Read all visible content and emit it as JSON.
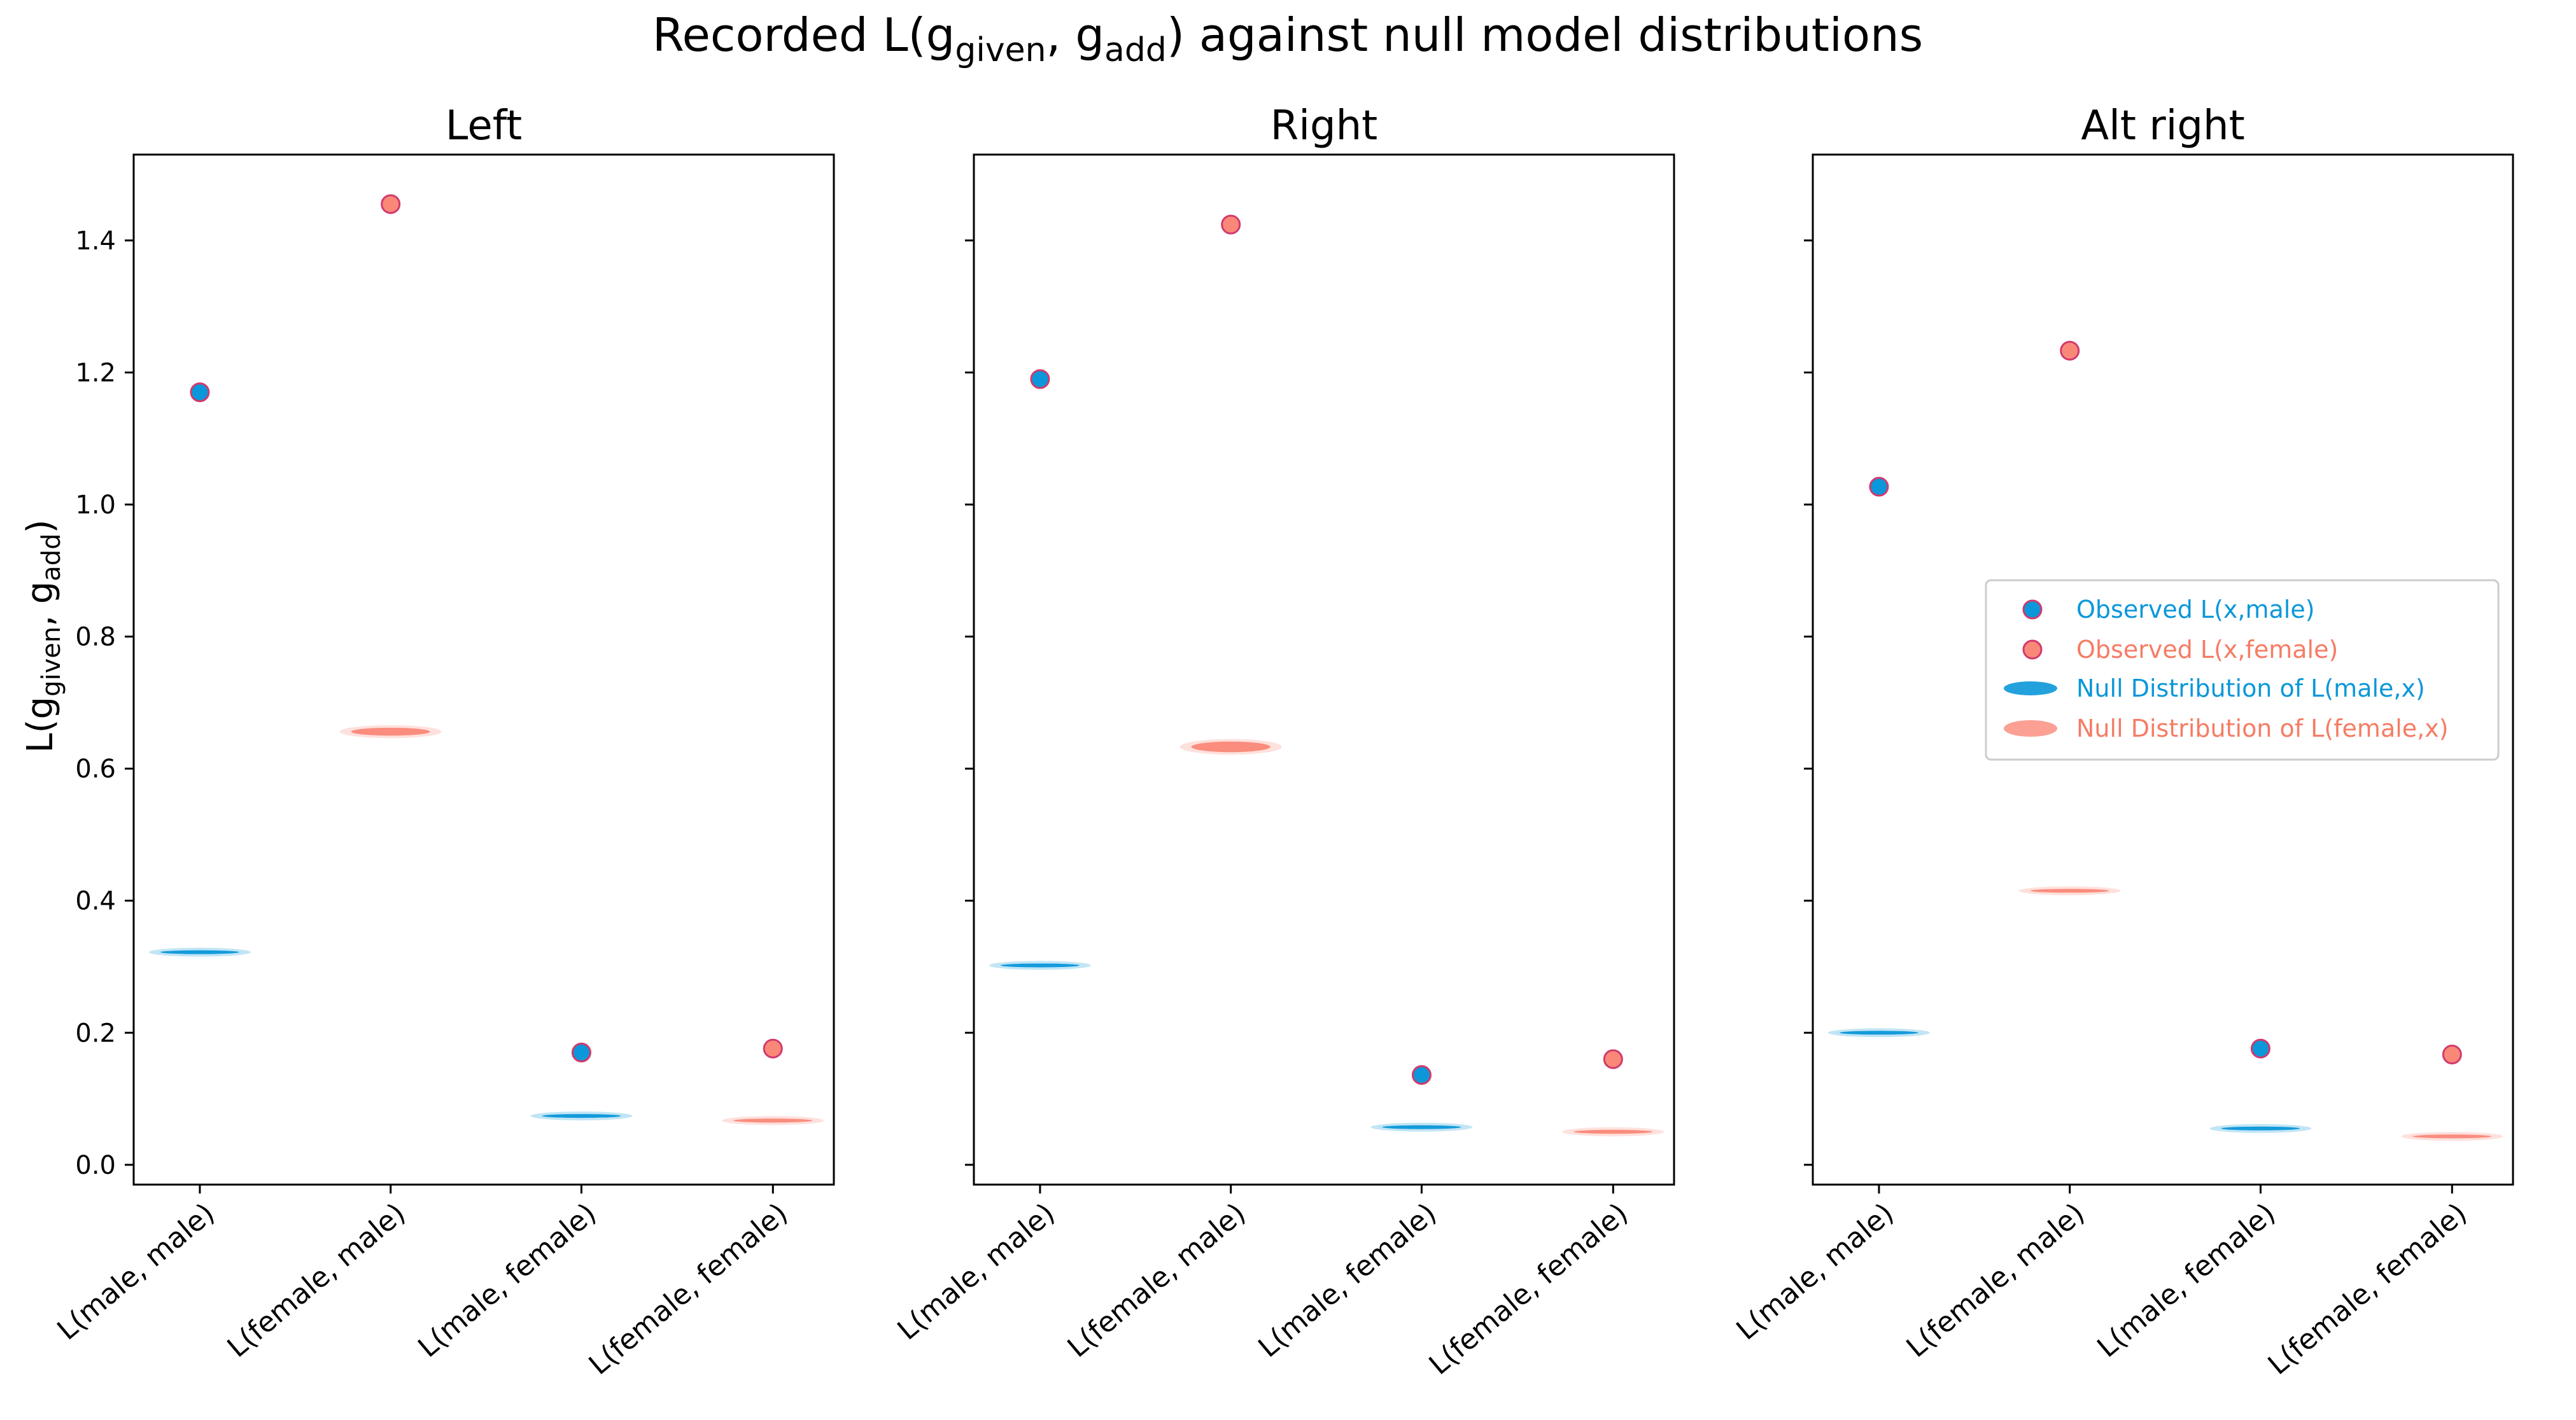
{
  "figure": {
    "title_main": "Recorded L(g",
    "title_sub1": "given",
    "title_mid": ", g",
    "title_sub2": "add",
    "title_end": ") against null model distributions",
    "ylabel_main": "L(g",
    "ylabel_sub1": "given",
    "ylabel_mid": ", g",
    "ylabel_sub2": "add",
    "ylabel_end": ")"
  },
  "colors": {
    "male": "#0b97d9",
    "female": "#fa8878",
    "edge": "#d13a6d",
    "male_text": "#0b97d9",
    "female_text": "#f67c64"
  },
  "legend": {
    "observed_male": "Observed L(x,male)",
    "observed_female": "Observed L(x,female)",
    "null_male": "Null Distribution of L(male,x)",
    "null_female": "Null Distribution of L(female,x)"
  },
  "chart_data": [
    {
      "type": "scatter",
      "title": "Left",
      "categories": [
        "L(male, male)",
        "L(female, male)",
        "L(male, female)",
        "L(female, female)"
      ],
      "category_group": [
        "male",
        "female",
        "male",
        "female"
      ],
      "observed": [
        1.17,
        1.455,
        0.17,
        0.176
      ],
      "null_center": [
        0.322,
        0.656,
        0.074,
        0.067
      ],
      "null_spread": [
        0.002,
        0.006,
        0.002,
        0.003
      ],
      "ylim": [
        -0.03,
        1.53
      ],
      "yticks": [
        0.0,
        0.2,
        0.4,
        0.6,
        0.8,
        1.0,
        1.2,
        1.4
      ],
      "ytick_labels": [
        "0.0",
        "0.2",
        "0.4",
        "0.6",
        "0.8",
        "1.0",
        "1.2",
        "1.4"
      ],
      "show_ytick_labels": true
    },
    {
      "type": "scatter",
      "title": "Right",
      "categories": [
        "L(male, male)",
        "L(female, male)",
        "L(male, female)",
        "L(female, female)"
      ],
      "category_group": [
        "male",
        "female",
        "male",
        "female"
      ],
      "observed": [
        1.19,
        1.424,
        0.136,
        0.16
      ],
      "null_center": [
        0.302,
        0.633,
        0.057,
        0.05
      ],
      "null_spread": [
        0.002,
        0.008,
        0.002,
        0.003
      ],
      "ylim": [
        -0.03,
        1.53
      ],
      "yticks": [
        0.0,
        0.2,
        0.4,
        0.6,
        0.8,
        1.0,
        1.2,
        1.4
      ],
      "ytick_labels": [
        "0.0",
        "0.2",
        "0.4",
        "0.6",
        "0.8",
        "1.0",
        "1.2",
        "1.4"
      ],
      "show_ytick_labels": false
    },
    {
      "type": "scatter",
      "title": "Alt right",
      "categories": [
        "L(male, male)",
        "L(female, male)",
        "L(male, female)",
        "L(female, female)"
      ],
      "category_group": [
        "male",
        "female",
        "male",
        "female"
      ],
      "observed": [
        1.027,
        1.233,
        0.176,
        0.167
      ],
      "null_center": [
        0.2,
        0.415,
        0.055,
        0.043
      ],
      "null_spread": [
        0.002,
        0.002,
        0.002,
        0.002
      ],
      "ylim": [
        -0.03,
        1.53
      ],
      "yticks": [
        0.0,
        0.2,
        0.4,
        0.6,
        0.8,
        1.0,
        1.2,
        1.4
      ],
      "ytick_labels": [
        "0.0",
        "0.2",
        "0.4",
        "0.6",
        "0.8",
        "1.0",
        "1.2",
        "1.4"
      ],
      "show_ytick_labels": false,
      "legend_location": "center-right"
    }
  ]
}
